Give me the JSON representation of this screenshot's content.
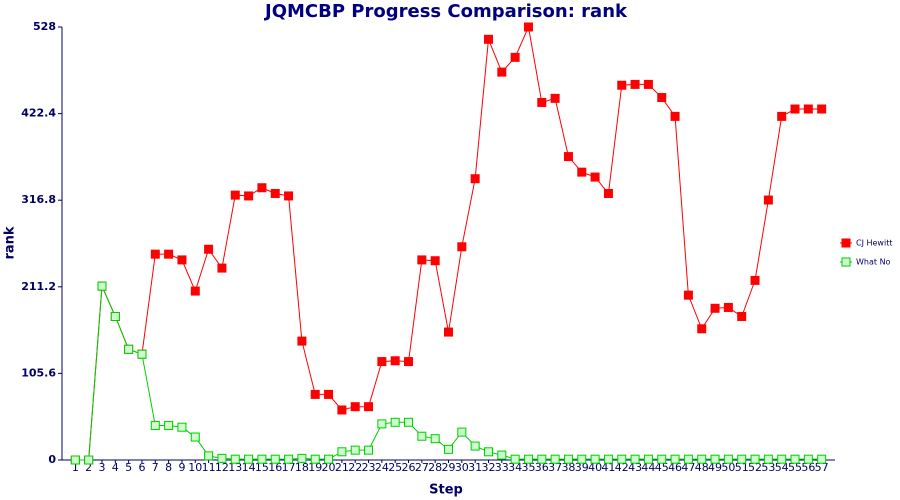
{
  "chart_data": {
    "type": "line",
    "title": "JQMCBP Progress Comparison: rank",
    "xlabel": "Step",
    "ylabel": "rank",
    "x": [
      1,
      2,
      3,
      4,
      5,
      6,
      7,
      8,
      9,
      10,
      11,
      12,
      13,
      14,
      15,
      16,
      17,
      18,
      19,
      20,
      21,
      22,
      23,
      24,
      25,
      26,
      27,
      28,
      29,
      30,
      31,
      32,
      33,
      34,
      35,
      36,
      37,
      38,
      39,
      40,
      41,
      42,
      43,
      44,
      45,
      46,
      47,
      48,
      49,
      50,
      51,
      52,
      53,
      54,
      55,
      56,
      57
    ],
    "xlim": [
      0,
      58
    ],
    "xticks": [
      1,
      2,
      3,
      4,
      5,
      6,
      7,
      8,
      9,
      10,
      11,
      12,
      13,
      14,
      15,
      16,
      17,
      18,
      19,
      20,
      21,
      22,
      23,
      24,
      25,
      26,
      27,
      28,
      29,
      30,
      31,
      32,
      33,
      34,
      35,
      36,
      37,
      38,
      39,
      40,
      41,
      42,
      43,
      44,
      45,
      46,
      47,
      48,
      49,
      50,
      51,
      52,
      53,
      54,
      55,
      56,
      57
    ],
    "ylim": [
      0,
      528
    ],
    "yticks": [
      0,
      105.6,
      211.2,
      316.8,
      422.4,
      528
    ],
    "legend": "right",
    "series": [
      {
        "name": "CJ Hewitt",
        "color": "#ff0000",
        "marker_fill": "#ff0000",
        "values": [
          0,
          0,
          212,
          175,
          135,
          129,
          251,
          251,
          244,
          206,
          257,
          234,
          323,
          322,
          332,
          325,
          322,
          145,
          80,
          80,
          61,
          65,
          65,
          120,
          121,
          120,
          244,
          243,
          156,
          260,
          343,
          513,
          473,
          491,
          528,
          436,
          441,
          370,
          351,
          345,
          325,
          457,
          458,
          458,
          442,
          419,
          201,
          160,
          185,
          186,
          175,
          219,
          317,
          419,
          428,
          428,
          428
        ]
      },
      {
        "name": "What No",
        "color": "#00cc00",
        "marker_fill": "#ccffcc",
        "values": [
          0,
          0,
          212,
          175,
          135,
          129,
          42,
          42,
          40,
          28,
          5,
          2,
          1,
          1,
          1,
          1,
          1,
          2,
          1,
          1,
          10,
          12,
          12,
          44,
          46,
          46,
          29,
          26,
          13,
          34,
          17,
          10,
          6,
          1,
          1,
          1,
          1,
          1,
          1,
          1,
          1,
          1,
          1,
          1,
          1,
          1,
          1,
          1,
          1,
          1,
          1,
          1,
          1,
          1,
          1,
          1,
          1
        ]
      }
    ]
  }
}
